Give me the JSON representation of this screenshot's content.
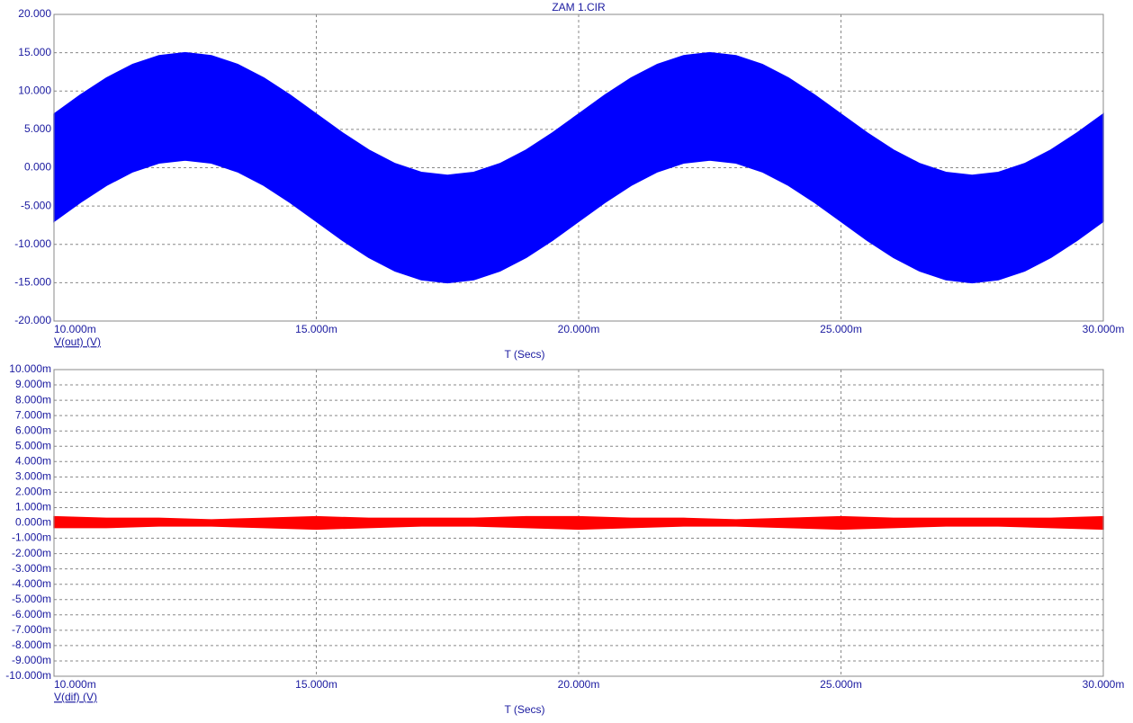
{
  "chart_data": [
    {
      "type": "range_area",
      "title": "ZAM 1.CIR",
      "xlabel": "T (Secs)",
      "xlim": [
        0.01,
        0.03
      ],
      "xticks": [
        {
          "value": 0.01,
          "label": "10.000m"
        },
        {
          "value": 0.015,
          "label": "15.000m"
        },
        {
          "value": 0.02,
          "label": "20.000m"
        },
        {
          "value": 0.025,
          "label": "25.000m"
        },
        {
          "value": 0.03,
          "label": "30.000m"
        }
      ],
      "ylim": [
        -20,
        20
      ],
      "yticks": [
        {
          "value": -20,
          "label": "-20.000"
        },
        {
          "value": -15,
          "label": "-15.000"
        },
        {
          "value": -10,
          "label": "-10.000"
        },
        {
          "value": -5,
          "label": "-5.000"
        },
        {
          "value": 0,
          "label": "0.000"
        },
        {
          "value": 5,
          "label": "5.000"
        },
        {
          "value": 10,
          "label": "10.000"
        },
        {
          "value": 15,
          "label": "15.000"
        },
        {
          "value": 20,
          "label": "20.000"
        }
      ],
      "grid": true,
      "x": [
        0.01,
        0.0105,
        0.011,
        0.0115,
        0.012,
        0.0125,
        0.013,
        0.0135,
        0.014,
        0.0145,
        0.015,
        0.0155,
        0.016,
        0.0165,
        0.017,
        0.0175,
        0.018,
        0.0185,
        0.019,
        0.0195,
        0.02,
        0.0205,
        0.021,
        0.0215,
        0.022,
        0.0225,
        0.023,
        0.0235,
        0.024,
        0.0245,
        0.025,
        0.0255,
        0.026,
        0.0265,
        0.027,
        0.0275,
        0.028,
        0.0285,
        0.029,
        0.0295,
        0.03
      ],
      "series": [
        {
          "name": "V(out) (V)",
          "color": "#0000ff",
          "high": [
            7,
            9.47,
            11.7,
            13.47,
            14.61,
            15,
            14.61,
            13.47,
            11.7,
            9.47,
            7,
            4.53,
            2.3,
            0.53,
            -0.61,
            -1,
            -0.61,
            0.53,
            2.3,
            4.53,
            7,
            9.47,
            11.7,
            13.47,
            14.61,
            15,
            14.61,
            13.47,
            11.7,
            9.47,
            7,
            4.53,
            2.3,
            0.53,
            -0.61,
            -1,
            -0.61,
            0.53,
            2.3,
            4.53,
            7
          ],
          "low": [
            -7,
            -4.53,
            -2.3,
            -0.53,
            0.61,
            1,
            0.61,
            -0.53,
            -2.3,
            -4.53,
            -7,
            -9.47,
            -11.7,
            -13.47,
            -14.61,
            -15,
            -14.61,
            -13.47,
            -11.7,
            -9.47,
            -7,
            -4.53,
            -2.3,
            -0.53,
            0.61,
            1,
            0.61,
            -0.53,
            -2.3,
            -4.53,
            -7,
            -9.47,
            -11.7,
            -13.47,
            -14.61,
            -15,
            -14.61,
            -13.47,
            -11.7,
            -9.47,
            -7
          ]
        }
      ]
    },
    {
      "type": "range_area",
      "xlabel": "T (Secs)",
      "xlim": [
        0.01,
        0.03
      ],
      "xticks": [
        {
          "value": 0.01,
          "label": "10.000m"
        },
        {
          "value": 0.015,
          "label": "15.000m"
        },
        {
          "value": 0.02,
          "label": "20.000m"
        },
        {
          "value": 0.025,
          "label": "25.000m"
        },
        {
          "value": 0.03,
          "label": "30.000m"
        }
      ],
      "ylim": [
        -0.01,
        0.01
      ],
      "yticks": [
        {
          "value": -0.01,
          "label": "-10.000m"
        },
        {
          "value": -0.009,
          "label": "-9.000m"
        },
        {
          "value": -0.008,
          "label": "-8.000m"
        },
        {
          "value": -0.007,
          "label": "-7.000m"
        },
        {
          "value": -0.006,
          "label": "-6.000m"
        },
        {
          "value": -0.005,
          "label": "-5.000m"
        },
        {
          "value": -0.004,
          "label": "-4.000m"
        },
        {
          "value": -0.003,
          "label": "-3.000m"
        },
        {
          "value": -0.002,
          "label": "-2.000m"
        },
        {
          "value": -0.001,
          "label": "-1.000m"
        },
        {
          "value": 0,
          "label": "0.000m"
        },
        {
          "value": 0.001,
          "label": "1.000m"
        },
        {
          "value": 0.002,
          "label": "2.000m"
        },
        {
          "value": 0.003,
          "label": "3.000m"
        },
        {
          "value": 0.004,
          "label": "4.000m"
        },
        {
          "value": 0.005,
          "label": "5.000m"
        },
        {
          "value": 0.006,
          "label": "6.000m"
        },
        {
          "value": 0.007,
          "label": "7.000m"
        },
        {
          "value": 0.008,
          "label": "8.000m"
        },
        {
          "value": 0.009,
          "label": "9.000m"
        },
        {
          "value": 0.01,
          "label": "10.000m"
        }
      ],
      "grid": true,
      "x": [
        0.01,
        0.011,
        0.012,
        0.013,
        0.014,
        0.015,
        0.016,
        0.017,
        0.018,
        0.019,
        0.02,
        0.021,
        0.022,
        0.023,
        0.024,
        0.025,
        0.026,
        0.027,
        0.028,
        0.029,
        0.03
      ],
      "series": [
        {
          "name": "V(dif) (V)",
          "color": "#ff0000",
          "high": [
            0.0004,
            0.0003,
            0.0003,
            0.0002,
            0.0003,
            0.0004,
            0.0003,
            0.0003,
            0.0003,
            0.0004,
            0.0004,
            0.0003,
            0.0003,
            0.0002,
            0.0003,
            0.0004,
            0.0003,
            0.0003,
            0.0003,
            0.0003,
            0.0004
          ],
          "low": [
            -0.0003,
            -0.0003,
            -0.0002,
            -0.0002,
            -0.0003,
            -0.0004,
            -0.0003,
            -0.0002,
            -0.0002,
            -0.0003,
            -0.0004,
            -0.0003,
            -0.0002,
            -0.0002,
            -0.0003,
            -0.0004,
            -0.0003,
            -0.0002,
            -0.0002,
            -0.0003,
            -0.0004
          ]
        }
      ]
    }
  ]
}
